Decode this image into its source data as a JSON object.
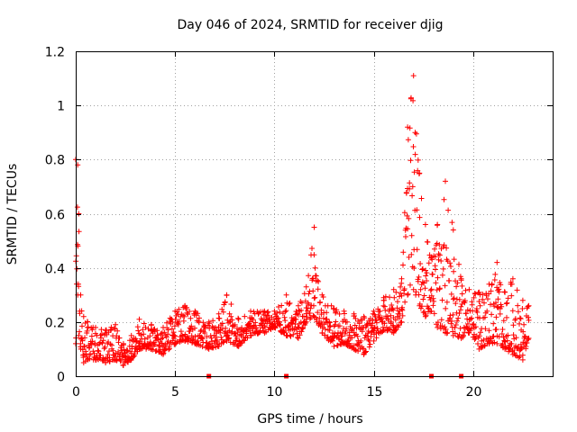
{
  "chart_data": {
    "type": "scatter",
    "title": "Day 046 of 2024, SRMTID for receiver djig",
    "xlabel": "GPS time / hours",
    "ylabel": "SRMTID / TECUs",
    "xlim": [
      0,
      24
    ],
    "ylim": [
      0,
      1.2
    ],
    "xticks": [
      0,
      5,
      10,
      15,
      20
    ],
    "xtick_labels": [
      "0",
      "5",
      "10",
      "15",
      "20"
    ],
    "yticks": [
      0,
      0.2,
      0.4,
      0.6,
      0.8,
      1.0,
      1.2
    ],
    "ytick_labels": [
      "0",
      "0.2",
      "0.4",
      "0.6",
      "0.8",
      "1",
      "1.2"
    ],
    "grid": true,
    "marker": "plus",
    "color": "#ff0000",
    "gap_markers_x": [
      6.7,
      10.6,
      17.9,
      19.4
    ],
    "envelope": [
      [
        0.0,
        0.12,
        0.8
      ],
      [
        0.1,
        0.3,
        0.78
      ],
      [
        0.15,
        0.15,
        0.6
      ],
      [
        0.25,
        0.1,
        0.3
      ],
      [
        0.4,
        0.05,
        0.22
      ],
      [
        0.6,
        0.06,
        0.2
      ],
      [
        1.0,
        0.06,
        0.18
      ],
      [
        1.5,
        0.05,
        0.17
      ],
      [
        2.0,
        0.06,
        0.19
      ],
      [
        2.4,
        0.04,
        0.12
      ],
      [
        2.8,
        0.06,
        0.15
      ],
      [
        3.2,
        0.1,
        0.21
      ],
      [
        3.8,
        0.1,
        0.19
      ],
      [
        4.4,
        0.08,
        0.18
      ],
      [
        5.0,
        0.12,
        0.24
      ],
      [
        5.5,
        0.13,
        0.26
      ],
      [
        6.0,
        0.12,
        0.24
      ],
      [
        6.7,
        0.1,
        0.2
      ],
      [
        7.2,
        0.11,
        0.23
      ],
      [
        7.6,
        0.13,
        0.3
      ],
      [
        8.2,
        0.11,
        0.21
      ],
      [
        8.8,
        0.15,
        0.24
      ],
      [
        9.5,
        0.16,
        0.24
      ],
      [
        10.0,
        0.18,
        0.24
      ],
      [
        10.6,
        0.15,
        0.3
      ],
      [
        11.2,
        0.14,
        0.26
      ],
      [
        11.6,
        0.2,
        0.33
      ],
      [
        12.0,
        0.22,
        0.55
      ],
      [
        12.4,
        0.16,
        0.3
      ],
      [
        13.0,
        0.11,
        0.25
      ],
      [
        13.5,
        0.12,
        0.24
      ],
      [
        14.0,
        0.1,
        0.23
      ],
      [
        14.5,
        0.08,
        0.22
      ],
      [
        15.0,
        0.13,
        0.24
      ],
      [
        15.5,
        0.17,
        0.29
      ],
      [
        16.0,
        0.16,
        0.32
      ],
      [
        16.4,
        0.2,
        0.36
      ],
      [
        16.7,
        0.3,
        0.92
      ],
      [
        17.0,
        0.32,
        1.11
      ],
      [
        17.3,
        0.26,
        0.75
      ],
      [
        17.6,
        0.22,
        0.56
      ],
      [
        17.9,
        0.24,
        0.44
      ],
      [
        18.2,
        0.18,
        0.56
      ],
      [
        18.6,
        0.16,
        0.72
      ],
      [
        19.0,
        0.15,
        0.54
      ],
      [
        19.4,
        0.14,
        0.36
      ],
      [
        19.8,
        0.16,
        0.32
      ],
      [
        20.3,
        0.1,
        0.31
      ],
      [
        20.8,
        0.12,
        0.34
      ],
      [
        21.2,
        0.12,
        0.42
      ],
      [
        21.6,
        0.1,
        0.31
      ],
      [
        22.0,
        0.08,
        0.36
      ],
      [
        22.5,
        0.06,
        0.28
      ],
      [
        22.8,
        0.14,
        0.26
      ]
    ]
  }
}
